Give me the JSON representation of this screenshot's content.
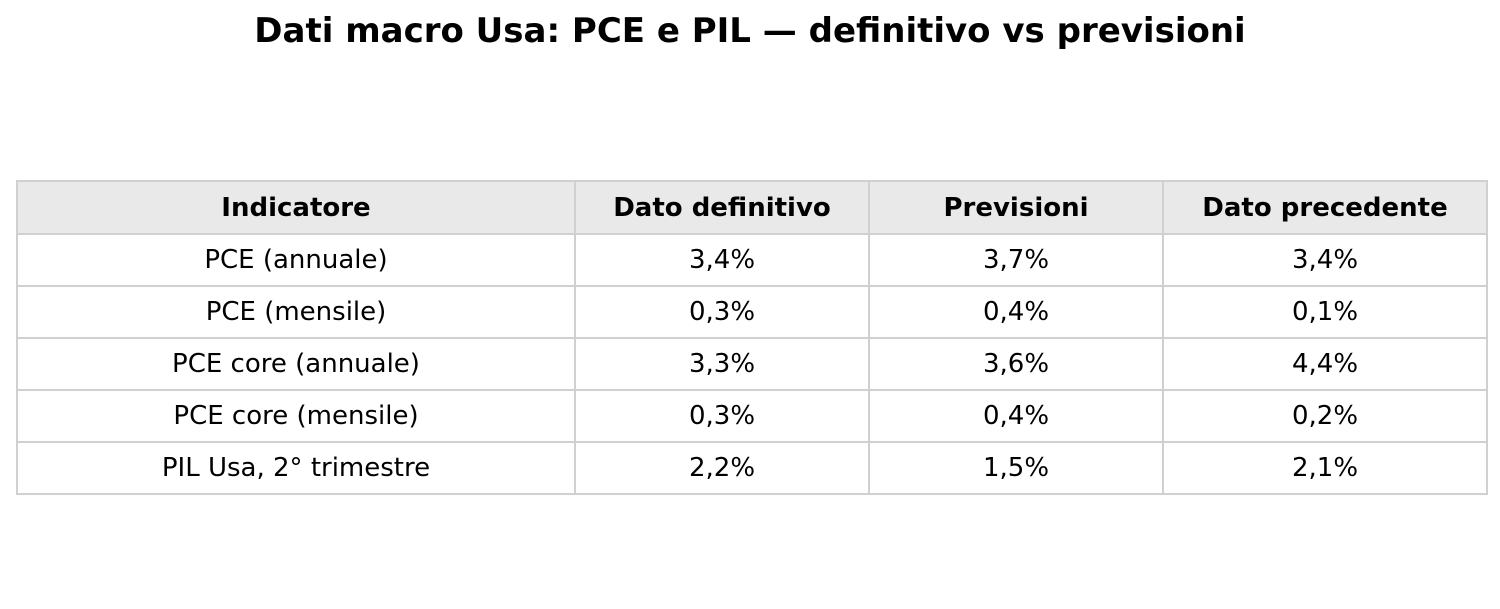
{
  "header": {
    "title": "Dati macro Usa: PCE e PIL — definitivo vs previsioni"
  },
  "table": {
    "columns": [
      "Indicatore",
      "Dato definitivo",
      "Previsioni",
      "Dato precedente"
    ],
    "rows": [
      [
        "PCE (annuale)",
        "3,4%",
        "3,7%",
        "3,4%"
      ],
      [
        "PCE (mensile)",
        "0,3%",
        "0,4%",
        "0,1%"
      ],
      [
        "PCE core (annuale)",
        "3,3%",
        "3,6%",
        "4,4%"
      ],
      [
        "PCE core (mensile)",
        "0,3%",
        "0,4%",
        "0,2%"
      ],
      [
        "PIL Usa, 2° trimestre",
        "2,2%",
        "1,5%",
        "2,1%"
      ]
    ]
  }
}
